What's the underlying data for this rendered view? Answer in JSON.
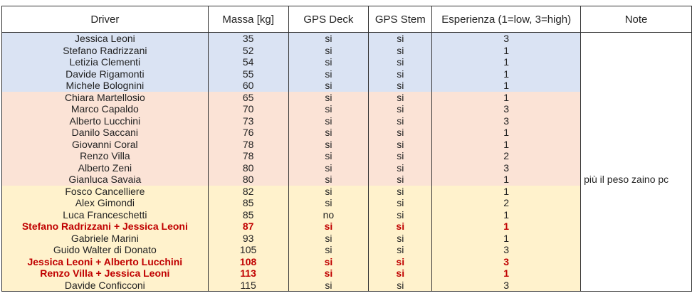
{
  "headers": [
    "Driver",
    "Massa [kg]",
    "GPS Deck",
    "GPS Stem",
    "Esperienza (1=low, 3=high)",
    "Note"
  ],
  "groups": {
    "blue": "#dae3f3",
    "red": "#fbe3d6",
    "yellow": "#fff2cc"
  },
  "highlight_color": "#c00000",
  "rows": [
    {
      "driver": "Jessica Leoni",
      "mass": "35",
      "gps_deck": "si",
      "gps_stem": "si",
      "exp": "3",
      "note": "",
      "group": "blue",
      "hl": false
    },
    {
      "driver": "Stefano Radrizzani",
      "mass": "52",
      "gps_deck": "si",
      "gps_stem": "si",
      "exp": "1",
      "note": "",
      "group": "blue",
      "hl": false
    },
    {
      "driver": "Letizia Clementi",
      "mass": "54",
      "gps_deck": "si",
      "gps_stem": "si",
      "exp": "1",
      "note": "",
      "group": "blue",
      "hl": false
    },
    {
      "driver": "Davide Rigamonti",
      "mass": "55",
      "gps_deck": "si",
      "gps_stem": "si",
      "exp": "1",
      "note": "",
      "group": "blue",
      "hl": false
    },
    {
      "driver": "Michele Bolognini",
      "mass": "60",
      "gps_deck": "si",
      "gps_stem": "si",
      "exp": "1",
      "note": "",
      "group": "blue",
      "hl": false
    },
    {
      "driver": "Chiara Martellosio",
      "mass": "65",
      "gps_deck": "si",
      "gps_stem": "si",
      "exp": "1",
      "note": "",
      "group": "red",
      "hl": false
    },
    {
      "driver": "Marco Capaldo",
      "mass": "70",
      "gps_deck": "si",
      "gps_stem": "si",
      "exp": "3",
      "note": "",
      "group": "red",
      "hl": false
    },
    {
      "driver": "Alberto Lucchini",
      "mass": "73",
      "gps_deck": "si",
      "gps_stem": "si",
      "exp": "3",
      "note": "",
      "group": "red",
      "hl": false
    },
    {
      "driver": "Danilo Saccani",
      "mass": "76",
      "gps_deck": "si",
      "gps_stem": "si",
      "exp": "1",
      "note": "",
      "group": "red",
      "hl": false
    },
    {
      "driver": "Giovanni Coral",
      "mass": "78",
      "gps_deck": "si",
      "gps_stem": "si",
      "exp": "1",
      "note": "",
      "group": "red",
      "hl": false
    },
    {
      "driver": "Renzo Villa",
      "mass": "78",
      "gps_deck": "si",
      "gps_stem": "si",
      "exp": "2",
      "note": "",
      "group": "red",
      "hl": false
    },
    {
      "driver": "Alberto Zeni",
      "mass": "80",
      "gps_deck": "si",
      "gps_stem": "si",
      "exp": "3",
      "note": "",
      "group": "red",
      "hl": false
    },
    {
      "driver": "Gianluca Savaia",
      "mass": "80",
      "gps_deck": "si",
      "gps_stem": "si",
      "exp": "1",
      "note": "più il peso zaino pc",
      "group": "red",
      "hl": false
    },
    {
      "driver": "Fosco Cancelliere",
      "mass": "82",
      "gps_deck": "si",
      "gps_stem": "si",
      "exp": "1",
      "note": "",
      "group": "yellow",
      "hl": false
    },
    {
      "driver": "Alex Gimondi",
      "mass": "85",
      "gps_deck": "si",
      "gps_stem": "si",
      "exp": "2",
      "note": "",
      "group": "yellow",
      "hl": false
    },
    {
      "driver": "Luca Franceschetti",
      "mass": "85",
      "gps_deck": "no",
      "gps_stem": "si",
      "exp": "1",
      "note": "",
      "group": "yellow",
      "hl": false
    },
    {
      "driver": "Stefano Radrizzani + Jessica Leoni",
      "mass": "87",
      "gps_deck": "si",
      "gps_stem": "si",
      "exp": "1",
      "note": "",
      "group": "yellow",
      "hl": true
    },
    {
      "driver": "Gabriele Marini",
      "mass": "93",
      "gps_deck": "si",
      "gps_stem": "si",
      "exp": "1",
      "note": "",
      "group": "yellow",
      "hl": false
    },
    {
      "driver": "Guido Walter di Donato",
      "mass": "105",
      "gps_deck": "si",
      "gps_stem": "si",
      "exp": "3",
      "note": "",
      "group": "yellow",
      "hl": false
    },
    {
      "driver": "Jessica Leoni + Alberto Lucchini",
      "mass": "108",
      "gps_deck": "si",
      "gps_stem": "si",
      "exp": "3",
      "note": "",
      "group": "yellow",
      "hl": true
    },
    {
      "driver": "Renzo Villa + Jessica Leoni",
      "mass": "113",
      "gps_deck": "si",
      "gps_stem": "si",
      "exp": "1",
      "note": "",
      "group": "yellow",
      "hl": true
    },
    {
      "driver": "Davide Conficconi",
      "mass": "115",
      "gps_deck": "si",
      "gps_stem": "si",
      "exp": "3",
      "note": "",
      "group": "yellow",
      "hl": false
    }
  ]
}
